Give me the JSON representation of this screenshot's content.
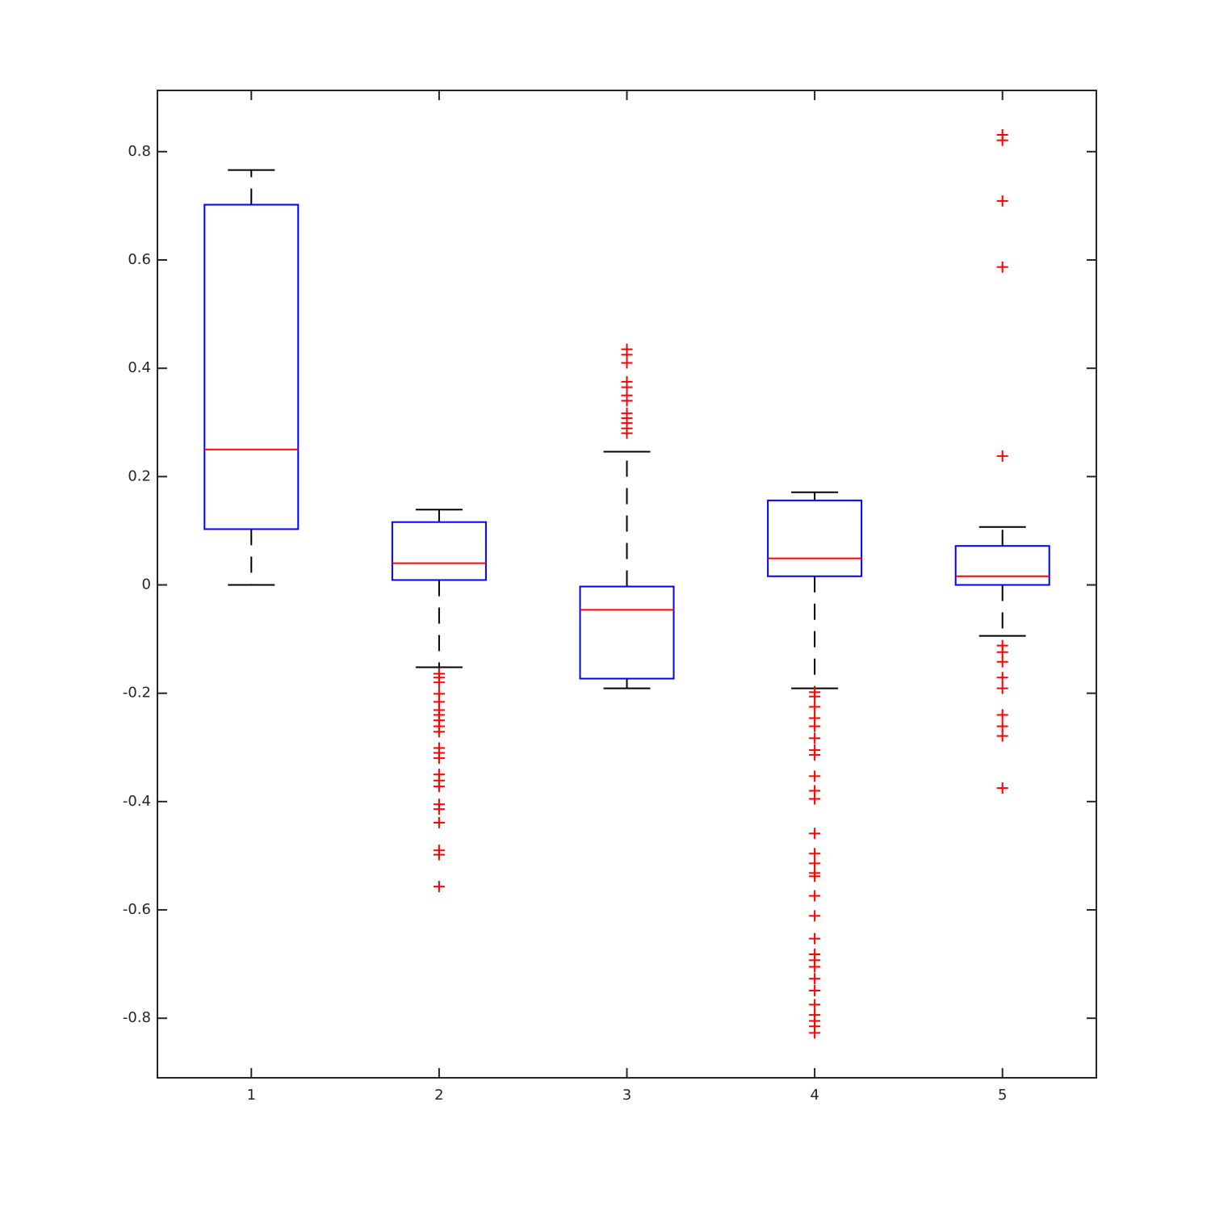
{
  "chart_data": {
    "type": "box",
    "categories": [
      "1",
      "2",
      "3",
      "4",
      "5"
    ],
    "ylim": [
      -0.91,
      0.913
    ],
    "yticks": [
      -0.8,
      -0.6,
      -0.4,
      -0.2,
      0,
      0.2,
      0.4,
      0.6,
      0.8
    ],
    "box_color": "#0000ff",
    "median_color": "#ff0000",
    "whisker_color": "#000000",
    "outlier_color": "#ff0000",
    "boxes": [
      {
        "whisker_low": 0,
        "q1": 0.103,
        "median": 0.25,
        "q3": 0.702,
        "whisker_high": 0.766,
        "outliers": []
      },
      {
        "whisker_low": -0.152,
        "q1": 0.009,
        "median": 0.04,
        "q3": 0.116,
        "whisker_high": 0.139,
        "outliers": [
          -0.164,
          -0.171,
          -0.18,
          -0.201,
          -0.216,
          -0.231,
          -0.24,
          -0.25,
          -0.261,
          -0.271,
          -0.301,
          -0.31,
          -0.32,
          -0.35,
          -0.361,
          -0.372,
          -0.405,
          -0.414,
          -0.439,
          -0.49,
          -0.498,
          -0.557
        ]
      },
      {
        "whisker_low": -0.191,
        "q1": -0.173,
        "median": -0.046,
        "q3": -0.003,
        "whisker_high": 0.246,
        "outliers": [
          0.435,
          0.425,
          0.41,
          0.375,
          0.365,
          0.35,
          0.34,
          0.317,
          0.308,
          0.299,
          0.289,
          0.28
        ]
      },
      {
        "whisker_low": -0.191,
        "q1": 0.016,
        "median": 0.049,
        "q3": 0.156,
        "whisker_high": 0.171,
        "outliers": [
          -0.198,
          -0.206,
          -0.225,
          -0.246,
          -0.261,
          -0.283,
          -0.305,
          -0.314,
          -0.353,
          -0.38,
          -0.395,
          -0.459,
          -0.496,
          -0.514,
          -0.532,
          -0.538,
          -0.574,
          -0.611,
          -0.653,
          -0.682,
          -0.693,
          -0.705,
          -0.727,
          -0.749,
          -0.775,
          -0.794,
          -0.805,
          -0.815,
          -0.827
        ]
      },
      {
        "whisker_low": -0.094,
        "q1": 0,
        "median": 0.016,
        "q3": 0.072,
        "whisker_high": 0.107,
        "outliers": [
          0.831,
          0.821,
          0.709,
          0.587,
          0.238,
          -0.112,
          -0.124,
          -0.142,
          -0.171,
          -0.191,
          -0.24,
          -0.261,
          -0.279,
          -0.375
        ]
      }
    ]
  }
}
